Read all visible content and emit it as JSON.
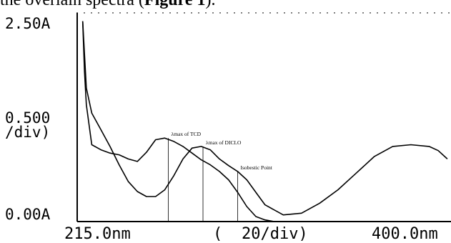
{
  "caption": {
    "prefix": "the overlain spectra (",
    "bold": "Figure 1",
    "suffix": ")."
  },
  "chart_data": {
    "type": "line",
    "title": "",
    "xlabel": "",
    "ylabel": "",
    "xlim": [
      207,
      412
    ],
    "ylim": [
      0,
      2.5
    ],
    "y_tick_labels": {
      "top": "2.50A",
      "mid_line1": "0.500",
      "mid_line2": "/div)",
      "bottom": "0.00A"
    },
    "x_tick_labels": {
      "left": "215.0nm",
      "mid_open": "(",
      "mid_div": "20/div)",
      "right": "400.0nm"
    },
    "series": [
      {
        "x": [
          210,
          211,
          212,
          215,
          220,
          225,
          230,
          235,
          240,
          245,
          250,
          255,
          260,
          265,
          270,
          275,
          280,
          285,
          290,
          295,
          300,
          305,
          310,
          315,
          320
        ],
        "y": [
          2.4,
          1.8,
          1.4,
          0.92,
          0.86,
          0.82,
          0.8,
          0.75,
          0.72,
          0.83,
          0.98,
          1.0,
          0.96,
          0.9,
          0.82,
          0.74,
          0.68,
          0.6,
          0.5,
          0.35,
          0.18,
          0.06,
          0.02,
          0.0,
          0.0
        ]
      },
      {
        "x": [
          210,
          212,
          215,
          220,
          225,
          230,
          235,
          240,
          245,
          250,
          255,
          260,
          265,
          270,
          275,
          280,
          285,
          290,
          295,
          300,
          305,
          310,
          320,
          330,
          340,
          350,
          360,
          370,
          380,
          390,
          400,
          405,
          410
        ],
        "y": [
          2.4,
          1.6,
          1.3,
          1.1,
          0.9,
          0.68,
          0.48,
          0.36,
          0.3,
          0.3,
          0.38,
          0.55,
          0.75,
          0.88,
          0.9,
          0.86,
          0.75,
          0.67,
          0.6,
          0.5,
          0.35,
          0.2,
          0.08,
          0.1,
          0.22,
          0.38,
          0.58,
          0.78,
          0.9,
          0.92,
          0.9,
          0.85,
          0.75
        ]
      }
    ],
    "annotations": [
      {
        "text": "λmax of TCD",
        "x": 257,
        "y": 1.0
      },
      {
        "text": "λmax of DICLO",
        "x": 276,
        "y": 0.9
      },
      {
        "text": "Isobestic Point",
        "x": 295,
        "y": 0.6
      }
    ]
  }
}
